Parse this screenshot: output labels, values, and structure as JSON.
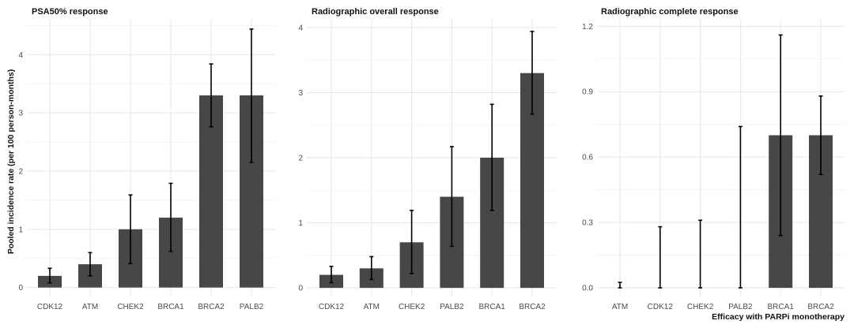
{
  "chart_data": [
    {
      "type": "bar",
      "title": "PSA50% response",
      "ylabel": "Pooled incidence rate (per 100 person-months)",
      "xlabel": "",
      "categories": [
        "CDK12",
        "ATM",
        "CHEK2",
        "BRCA1",
        "BRCA2",
        "PALB2"
      ],
      "values": [
        0.2,
        0.4,
        1.0,
        1.2,
        3.3,
        3.3
      ],
      "ci_lower": [
        0.08,
        0.2,
        0.41,
        0.62,
        2.76,
        2.15
      ],
      "ci_upper": [
        0.33,
        0.6,
        1.59,
        1.79,
        3.84,
        4.44
      ],
      "yticks": [
        0,
        1,
        2,
        3,
        4
      ],
      "ytick_labels": [
        "0",
        "1",
        "2",
        "3",
        "4"
      ],
      "ylim": [
        -0.14,
        4.6
      ],
      "grid": true
    },
    {
      "type": "bar",
      "title": "Radiographic overall response",
      "ylabel": "",
      "xlabel": "",
      "categories": [
        "CDK12",
        "ATM",
        "CHEK2",
        "PALB2",
        "BRCA1",
        "BRCA2"
      ],
      "values": [
        0.2,
        0.3,
        0.7,
        1.4,
        2.0,
        3.3
      ],
      "ci_lower": [
        0.08,
        0.13,
        0.22,
        0.64,
        1.19,
        2.67
      ],
      "ci_upper": [
        0.33,
        0.48,
        1.19,
        2.17,
        2.82,
        3.94
      ],
      "yticks": [
        0,
        1,
        2,
        3,
        4
      ],
      "ytick_labels": [
        "0",
        "1",
        "2",
        "3",
        "4"
      ],
      "ylim": [
        -0.12,
        4.12
      ],
      "grid": true
    },
    {
      "type": "bar",
      "title": "Radiographic complete response",
      "ylabel": "",
      "xlabel": "Efficacy with PARPi monotherapy",
      "categories": [
        "ATM",
        "CDK12",
        "CHEK2",
        "PALB2",
        "BRCA1",
        "BRCA2"
      ],
      "values": [
        0,
        0,
        0,
        0,
        0.7,
        0.7
      ],
      "ci_lower": [
        0,
        0,
        0,
        0,
        0.24,
        0.52
      ],
      "ci_upper": [
        0.025,
        0.28,
        0.31,
        0.74,
        1.16,
        0.88
      ],
      "yticks": [
        0,
        0.3,
        0.6,
        0.9,
        1.2
      ],
      "ytick_labels": [
        "0.0",
        "0.3",
        "0.6",
        "0.9",
        "1.2"
      ],
      "ylim": [
        -0.036,
        1.23
      ],
      "grid": true
    }
  ],
  "colors": {
    "bar": "#474747",
    "errorbar": "#000000",
    "grid": "#e6e6e6",
    "grid_minor": "#f2f2f2"
  }
}
